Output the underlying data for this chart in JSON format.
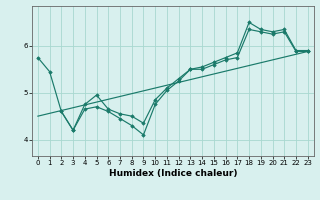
{
  "xlabel": "Humidex (Indice chaleur)",
  "bg_color": "#d8f0ee",
  "grid_color": "#a8d8d0",
  "line_color": "#1a7a6a",
  "xlim": [
    -0.5,
    23.5
  ],
  "ylim": [
    3.65,
    6.85
  ],
  "yticks": [
    4,
    5,
    6
  ],
  "xticks": [
    0,
    1,
    2,
    3,
    4,
    5,
    6,
    7,
    8,
    9,
    10,
    11,
    12,
    13,
    14,
    15,
    16,
    17,
    18,
    19,
    20,
    21,
    22,
    23
  ],
  "line1_x": [
    0,
    1,
    2,
    3,
    4,
    5,
    6,
    7,
    8,
    9,
    10,
    11,
    12,
    13,
    14,
    15,
    16,
    17,
    18,
    19,
    20,
    21,
    22,
    23
  ],
  "line1_y": [
    5.75,
    5.45,
    4.6,
    4.2,
    4.75,
    4.95,
    4.65,
    4.55,
    4.5,
    4.35,
    4.85,
    5.1,
    5.3,
    5.5,
    5.55,
    5.65,
    5.75,
    5.85,
    6.5,
    6.35,
    6.3,
    6.35,
    5.9,
    5.9
  ],
  "line2_x": [
    2,
    3,
    4,
    5,
    6,
    7,
    8,
    9,
    10,
    11,
    12,
    13,
    14,
    15,
    16,
    17,
    18,
    19,
    20,
    21,
    22,
    23
  ],
  "line2_y": [
    4.6,
    4.2,
    4.65,
    4.7,
    4.6,
    4.45,
    4.3,
    4.1,
    4.75,
    5.05,
    5.25,
    5.5,
    5.5,
    5.6,
    5.7,
    5.75,
    6.35,
    6.3,
    6.25,
    6.3,
    5.88,
    5.88
  ],
  "line3_x": [
    0,
    23
  ],
  "line3_y": [
    4.5,
    5.88
  ]
}
